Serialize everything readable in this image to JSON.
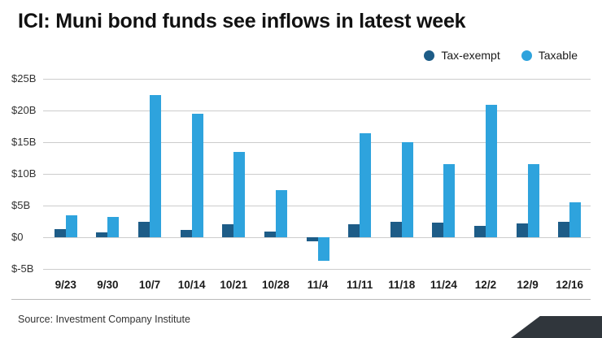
{
  "header": {
    "title": "ICI: Muni bond funds see inflows in latest week"
  },
  "legend": [
    {
      "label": "Tax-exempt",
      "color": "#1d5c87"
    },
    {
      "label": "Taxable",
      "color": "#2ea3dd"
    }
  ],
  "footer": {
    "source": "Source: Investment Company Institute"
  },
  "chart_data": {
    "type": "bar",
    "title": "ICI: Muni bond funds see inflows in latest week",
    "categories": [
      "9/23",
      "9/30",
      "10/7",
      "10/14",
      "10/21",
      "10/28",
      "11/4",
      "11/11",
      "11/18",
      "11/24",
      "12/2",
      "12/9",
      "12/16"
    ],
    "series": [
      {
        "name": "Tax-exempt",
        "color": "#1d5c87",
        "values": [
          1.3,
          0.8,
          2.4,
          1.2,
          2.1,
          0.9,
          -0.6,
          2.0,
          2.5,
          2.3,
          1.8,
          2.2,
          2.5
        ]
      },
      {
        "name": "Taxable",
        "color": "#2ea3dd",
        "values": [
          3.5,
          3.2,
          22.5,
          19.5,
          13.5,
          7.5,
          -3.7,
          16.4,
          15.0,
          11.5,
          20.9,
          11.6,
          5.5
        ]
      }
    ],
    "y_ticks": [
      25,
      20,
      15,
      10,
      5,
      0,
      -5
    ],
    "y_tick_labels": [
      "$25B",
      "$20B",
      "$15B",
      "$10B",
      "$5B",
      "$0",
      "$-5B"
    ],
    "ylim": [
      -5,
      25
    ],
    "xlabel": "",
    "ylabel": "",
    "grid": true,
    "legend_position": "top-right"
  }
}
